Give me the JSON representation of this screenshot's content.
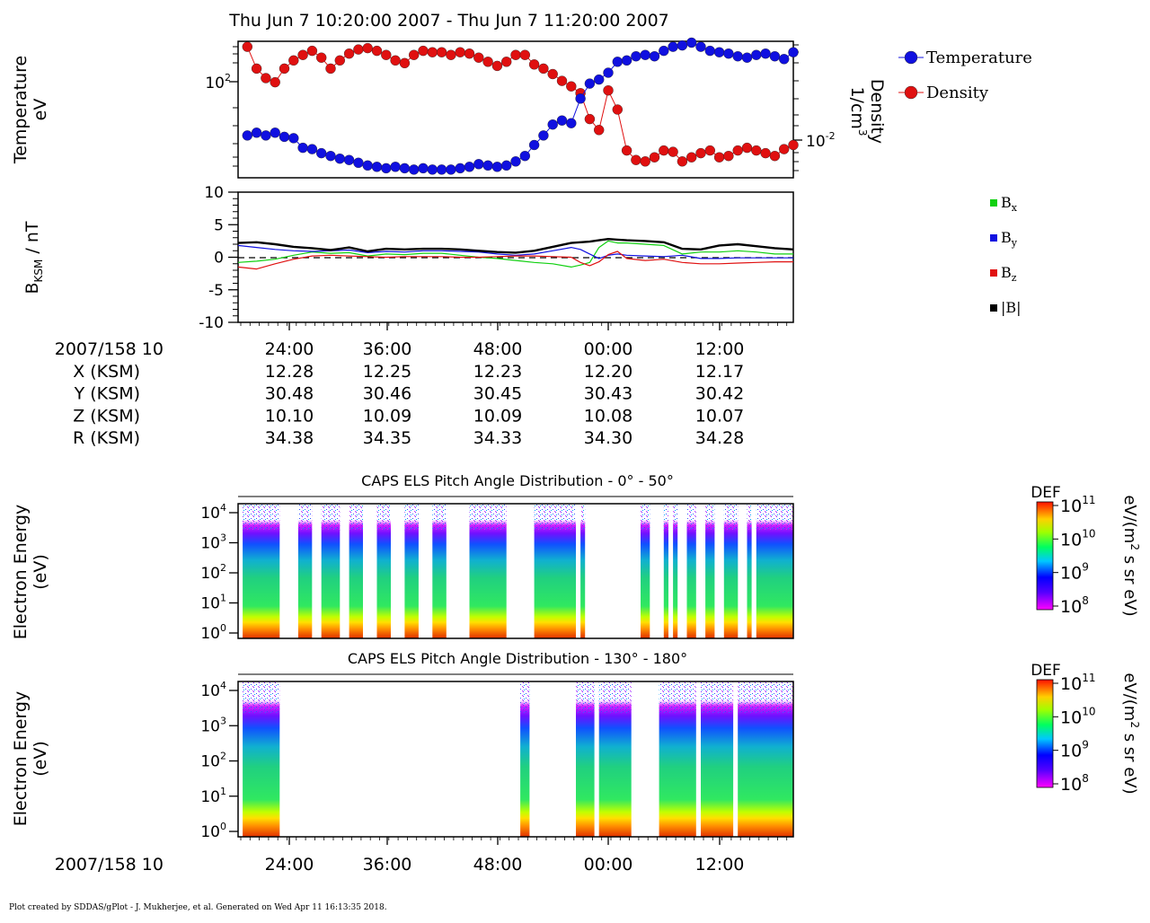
{
  "header": {
    "time_range": "Thu Jun 7 10:20:00 2007 - Thu Jun 7 11:20:00 2007"
  },
  "footer": {
    "credit": "Plot created by SDDAS/gPlot - J. Mukherjee, et al.  Generated on Wed Apr 11 16:13:35 2018."
  },
  "time_axis": {
    "day_label": "2007/158 10",
    "ticks": [
      "24:00",
      "36:00",
      "48:00",
      "00:00",
      "12:00"
    ]
  },
  "ephemeris": {
    "rows": [
      {
        "label": "X (KSM)",
        "values": [
          "12.28",
          "12.25",
          "12.23",
          "12.20",
          "12.17"
        ]
      },
      {
        "label": "Y (KSM)",
        "values": [
          "30.48",
          "30.46",
          "30.45",
          "30.43",
          "30.42"
        ]
      },
      {
        "label": "Z (KSM)",
        "values": [
          "10.10",
          "10.09",
          "10.09",
          "10.08",
          "10.07"
        ]
      },
      {
        "label": "R (KSM)",
        "values": [
          "34.38",
          "34.35",
          "34.33",
          "34.30",
          "34.28"
        ]
      }
    ]
  },
  "colors": {
    "temperature": "#1010e0",
    "density": "#e01010",
    "bx": "#10d010",
    "by": "#1010e0",
    "bz": "#e01010",
    "btot": "#000000"
  },
  "chart_data": [
    {
      "type": "scatter",
      "name": "temperature_density",
      "ylabel": [
        "Temperature",
        "eV"
      ],
      "ylabel_right": [
        "Density",
        "1/cm"
      ],
      "ylabel_right_sup": "3",
      "yticks_left": [
        {
          "base": "10",
          "exp": "2"
        }
      ],
      "yticks_right": [
        {
          "base": "10",
          "exp": "-2"
        }
      ],
      "legend": [
        {
          "label": "Temperature",
          "color": "#1010e0"
        },
        {
          "label": "Density",
          "color": "#e01010"
        }
      ],
      "x_minutes": [
        21,
        22,
        23,
        24,
        25,
        26,
        27,
        28,
        29,
        30,
        31,
        32,
        33,
        34,
        35,
        36,
        37,
        38,
        39,
        40,
        41,
        42,
        43,
        44,
        45,
        46,
        47,
        48,
        49,
        50,
        51,
        52,
        53,
        54,
        55,
        56,
        57,
        58,
        59,
        60,
        61,
        62,
        63,
        64,
        65,
        66,
        67,
        68,
        69,
        70,
        71,
        72,
        73,
        74,
        75,
        76,
        77,
        78,
        79,
        80
      ],
      "temperature": [
        0.31,
        0.33,
        0.31,
        0.33,
        0.3,
        0.29,
        0.22,
        0.21,
        0.18,
        0.16,
        0.14,
        0.13,
        0.11,
        0.09,
        0.08,
        0.07,
        0.08,
        0.07,
        0.06,
        0.07,
        0.06,
        0.06,
        0.06,
        0.07,
        0.08,
        0.1,
        0.09,
        0.08,
        0.09,
        0.12,
        0.16,
        0.24,
        0.31,
        0.39,
        0.42,
        0.4,
        0.58,
        0.69,
        0.72,
        0.77,
        0.85,
        0.86,
        0.89,
        0.9,
        0.89,
        0.93,
        0.96,
        0.97,
        0.99,
        0.96,
        0.93,
        0.92,
        0.91,
        0.89,
        0.88,
        0.9,
        0.91,
        0.89,
        0.87,
        0.92
      ],
      "density": [
        0.96,
        0.8,
        0.73,
        0.7,
        0.8,
        0.86,
        0.9,
        0.93,
        0.88,
        0.8,
        0.86,
        0.91,
        0.94,
        0.95,
        0.93,
        0.9,
        0.86,
        0.84,
        0.9,
        0.93,
        0.92,
        0.92,
        0.9,
        0.92,
        0.91,
        0.88,
        0.85,
        0.82,
        0.85,
        0.9,
        0.9,
        0.83,
        0.8,
        0.76,
        0.71,
        0.67,
        0.62,
        0.43,
        0.35,
        0.64,
        0.5,
        0.2,
        0.13,
        0.12,
        0.15,
        0.2,
        0.19,
        0.12,
        0.15,
        0.18,
        0.2,
        0.15,
        0.16,
        0.2,
        0.22,
        0.2,
        0.18,
        0.16,
        0.21,
        0.24
      ]
    },
    {
      "type": "line",
      "name": "magnetic_field",
      "ylabel": "B",
      "ylabel_sub": "KSM",
      "ylabel_unit": " / nT",
      "ylim": [
        -10,
        10
      ],
      "yticks": [
        "10",
        "5",
        "0",
        "-5",
        "-10"
      ],
      "legend": [
        {
          "label": "B",
          "sub": "x",
          "color": "#10d010"
        },
        {
          "label": "B",
          "sub": "y",
          "color": "#1010e0"
        },
        {
          "label": "B",
          "sub": "z",
          "color": "#e01010"
        },
        {
          "label": "|B|",
          "sub": "",
          "color": "#000000"
        }
      ],
      "x_minutes": [
        20,
        22,
        24,
        26,
        28,
        30,
        32,
        34,
        36,
        38,
        40,
        42,
        44,
        46,
        48,
        50,
        52,
        54,
        56,
        57,
        58,
        59,
        60,
        61,
        62,
        64,
        66,
        68,
        70,
        72,
        74,
        76,
        78,
        80
      ],
      "series": [
        {
          "name": "Bx",
          "values": [
            -0.8,
            -0.6,
            -0.3,
            0.3,
            0.8,
            0.6,
            0.7,
            0.2,
            0.5,
            0.4,
            0.6,
            0.6,
            0.3,
            0.0,
            -0.2,
            -0.5,
            -0.8,
            -1.0,
            -1.5,
            -1.2,
            -0.8,
            1.5,
            2.5,
            2.2,
            2.2,
            2.0,
            1.8,
            0.5,
            0.8,
            0.8,
            1.0,
            0.8,
            0.5,
            0.5
          ]
        },
        {
          "name": "By",
          "values": [
            1.8,
            1.5,
            1.2,
            1.0,
            0.9,
            1.0,
            1.1,
            0.7,
            0.9,
            0.8,
            1.0,
            1.0,
            0.9,
            0.8,
            0.5,
            0.3,
            0.5,
            1.0,
            1.5,
            1.2,
            0.5,
            -0.2,
            0.3,
            0.5,
            0.3,
            0.2,
            0.1,
            0.3,
            -0.2,
            -0.2,
            -0.1,
            -0.1,
            -0.1,
            -0.1
          ]
        },
        {
          "name": "Bz",
          "values": [
            -1.5,
            -1.8,
            -1.0,
            -0.3,
            0.2,
            0.3,
            0.2,
            0.1,
            0.0,
            0.1,
            0.1,
            0.1,
            0.0,
            0.0,
            0.1,
            0.2,
            0.2,
            0.1,
            0.0,
            -0.8,
            -1.3,
            -0.7,
            0.4,
            0.9,
            -0.2,
            -0.5,
            -0.3,
            -0.8,
            -1.0,
            -1.0,
            -0.9,
            -0.8,
            -0.7,
            -0.7
          ]
        },
        {
          "name": "|B|",
          "values": [
            2.2,
            2.3,
            2.0,
            1.6,
            1.4,
            1.1,
            1.5,
            0.9,
            1.3,
            1.2,
            1.3,
            1.3,
            1.2,
            1.0,
            0.8,
            0.7,
            1.0,
            1.6,
            2.2,
            2.3,
            2.4,
            2.6,
            2.8,
            2.7,
            2.6,
            2.5,
            2.3,
            1.3,
            1.2,
            1.8,
            2.0,
            1.7,
            1.4,
            1.2
          ]
        }
      ]
    },
    {
      "type": "heatmap",
      "name": "els_pad_0_50",
      "title": "CAPS ELS Pitch Angle Distribution - 0° - 50°",
      "ylabel": [
        "Electron Energy",
        "(eV)"
      ],
      "yticks": [
        {
          "base": "10",
          "exp": "4"
        },
        {
          "base": "10",
          "exp": "3"
        },
        {
          "base": "10",
          "exp": "2"
        },
        {
          "base": "10",
          "exp": "1"
        },
        {
          "base": "10",
          "exp": "0"
        }
      ],
      "colorbar": {
        "label": "DEF",
        "unit": "eV/(m",
        "unit_sup": "2",
        "unit_tail": " s sr eV)",
        "ticks": [
          {
            "base": "10",
            "exp": "11"
          },
          {
            "base": "10",
            "exp": "10"
          },
          {
            "base": "10",
            "exp": "9"
          },
          {
            "base": "10",
            "exp": "8"
          }
        ]
      },
      "data_windows_minutes": [
        [
          20.5,
          24.5
        ],
        [
          26.5,
          28.0
        ],
        [
          29.0,
          31.0
        ],
        [
          32.0,
          33.5
        ],
        [
          35.0,
          36.5
        ],
        [
          38.0,
          39.5
        ],
        [
          41.0,
          42.5
        ],
        [
          45.0,
          49.0
        ],
        [
          52.0,
          56.5
        ],
        [
          57.0,
          57.5
        ],
        [
          63.5,
          64.5
        ],
        [
          66.0,
          66.5
        ],
        [
          67.0,
          67.5
        ],
        [
          68.5,
          69.5
        ],
        [
          70.5,
          71.5
        ],
        [
          72.5,
          74.0
        ],
        [
          75.0,
          75.5
        ],
        [
          76.0,
          80.0
        ]
      ]
    },
    {
      "type": "heatmap",
      "name": "els_pad_130_180",
      "title": "CAPS ELS Pitch Angle Distribution - 130° - 180°",
      "ylabel": [
        "Electron Energy",
        "(eV)"
      ],
      "yticks": [
        {
          "base": "10",
          "exp": "4"
        },
        {
          "base": "10",
          "exp": "3"
        },
        {
          "base": "10",
          "exp": "2"
        },
        {
          "base": "10",
          "exp": "1"
        },
        {
          "base": "10",
          "exp": "0"
        }
      ],
      "colorbar": {
        "label": "DEF",
        "unit": "eV/(m",
        "unit_sup": "2",
        "unit_tail": " s sr eV)",
        "ticks": [
          {
            "base": "10",
            "exp": "11"
          },
          {
            "base": "10",
            "exp": "10"
          },
          {
            "base": "10",
            "exp": "9"
          },
          {
            "base": "10",
            "exp": "8"
          }
        ]
      },
      "data_windows_minutes": [
        [
          20.5,
          24.5
        ],
        [
          50.5,
          51.5
        ],
        [
          56.5,
          58.5
        ],
        [
          59.0,
          62.5
        ],
        [
          65.5,
          69.5
        ],
        [
          70.0,
          73.5
        ],
        [
          74.0,
          80.0
        ]
      ]
    }
  ]
}
